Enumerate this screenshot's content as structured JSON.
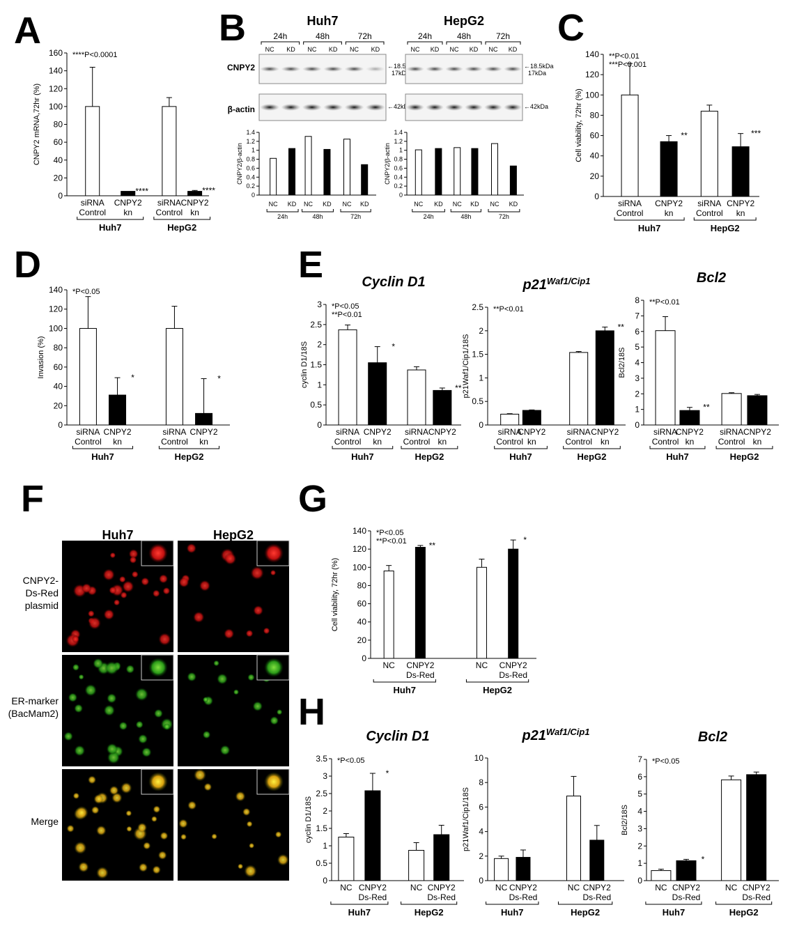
{
  "panels": {
    "A": {
      "letter": "A"
    },
    "B": {
      "letter": "B"
    },
    "C": {
      "letter": "C"
    },
    "D": {
      "letter": "D"
    },
    "E": {
      "letter": "E"
    },
    "F": {
      "letter": "F"
    },
    "G": {
      "letter": "G"
    },
    "H": {
      "letter": "H"
    }
  },
  "blot": {
    "cells": [
      "Huh7",
      "HepG2"
    ],
    "timepoints": [
      "24h",
      "48h",
      "72h"
    ],
    "lanes": [
      "NC",
      "KD",
      "NC",
      "KD",
      "NC",
      "KD"
    ],
    "rows": [
      "CNPY2",
      "β-actin"
    ],
    "markers_cnpy2": [
      "18.5kDa",
      "17kDa"
    ],
    "marker_actin": "42kDa"
  },
  "microscopy": {
    "columns": [
      "Huh7",
      "HepG2"
    ],
    "rows": [
      "CNPY2-\nDs-Red\nplasmid",
      "ER-marker\n(BacMam2)",
      "Merge"
    ],
    "row_colors": [
      "#d01010",
      "#28b020",
      "#c8b010"
    ]
  },
  "chart_data": [
    {
      "id": "A",
      "type": "bar",
      "ylabel": "CNPY2 mRNA,72hr (%)",
      "ylim": [
        0,
        160
      ],
      "yticks": [
        0,
        20,
        40,
        60,
        80,
        100,
        120,
        140,
        160
      ],
      "categories": [
        "siRNA Control",
        "CNPY2 kn",
        "siRNA Control",
        "CNPY2 kn"
      ],
      "groups": [
        "Huh7",
        "HepG2"
      ],
      "values": [
        100,
        5,
        100,
        5
      ],
      "errors": [
        44,
        0,
        10,
        1
      ],
      "fills": [
        "white",
        "black",
        "white",
        "black"
      ],
      "sig": [
        "",
        "****",
        "",
        "****"
      ],
      "stats": [
        "****P<0.0001"
      ]
    },
    {
      "id": "B-Huh7",
      "type": "bar",
      "ylabel": "CNPY2/β-actin",
      "ylim": [
        0,
        1.4
      ],
      "yticks": [
        0,
        0.2,
        0.4,
        0.6,
        0.8,
        1,
        1.2,
        1.4
      ],
      "categories": [
        "NC",
        "KD",
        "NC",
        "KD",
        "NC",
        "KD"
      ],
      "groups": [
        "24h",
        "48h",
        "72h"
      ],
      "values": [
        0.82,
        1.04,
        1.31,
        1.02,
        1.25,
        0.68
      ],
      "fills": [
        "white",
        "black",
        "white",
        "black",
        "white",
        "black"
      ]
    },
    {
      "id": "B-HepG2",
      "type": "bar",
      "ylabel": "CNPY2/β-actin",
      "ylim": [
        0,
        1.4
      ],
      "yticks": [
        0,
        0.2,
        0.4,
        0.6,
        0.8,
        1,
        1.2,
        1.4
      ],
      "categories": [
        "NC",
        "KD",
        "NC",
        "KD",
        "NC",
        "KD"
      ],
      "groups": [
        "24h",
        "48h",
        "72h"
      ],
      "values": [
        1.01,
        1.04,
        1.06,
        1.04,
        1.15,
        0.65
      ],
      "fills": [
        "white",
        "black",
        "white",
        "black",
        "white",
        "black"
      ]
    },
    {
      "id": "C",
      "type": "bar",
      "ylabel": "Cell viability, 72hr (%)",
      "ylim": [
        0,
        140
      ],
      "yticks": [
        0,
        20,
        40,
        60,
        80,
        100,
        120,
        140
      ],
      "categories": [
        "siRNA Control",
        "CNPY2 kn",
        "siRNA Control",
        "CNPY2 kn"
      ],
      "groups": [
        "Huh7",
        "HepG2"
      ],
      "values": [
        100,
        54,
        84,
        49
      ],
      "errors": [
        31,
        6,
        6,
        13
      ],
      "fills": [
        "white",
        "black",
        "white",
        "black"
      ],
      "sig": [
        "",
        "**",
        "",
        "***"
      ],
      "stats": [
        "**P<0.01",
        "***P<0.001"
      ]
    },
    {
      "id": "D",
      "type": "bar",
      "ylabel": "Invasion (%)",
      "ylim": [
        0,
        140
      ],
      "yticks": [
        0,
        20,
        40,
        60,
        80,
        100,
        120,
        140
      ],
      "categories": [
        "siRNA Control",
        "CNPY2 kn",
        "siRNA Control",
        "CNPY2 kn"
      ],
      "groups": [
        "Huh7",
        "HepG2"
      ],
      "values": [
        100,
        31,
        100,
        12
      ],
      "errors": [
        33,
        18,
        23,
        36
      ],
      "fills": [
        "white",
        "black",
        "white",
        "black"
      ],
      "sig": [
        "",
        "*",
        "",
        "*"
      ],
      "stats": [
        "*P<0.05"
      ]
    },
    {
      "id": "E1",
      "type": "bar",
      "title": "Cyclin D1",
      "ylabel": "cyclin D1/18S",
      "ylim": [
        0,
        3
      ],
      "yticks": [
        0,
        0.5,
        1,
        1.5,
        2,
        2.5,
        3
      ],
      "categories": [
        "siRNA Control",
        "CNPY2 kn",
        "siRNA Control",
        "CNPY2 kn"
      ],
      "groups": [
        "Huh7",
        "HepG2"
      ],
      "values": [
        2.37,
        1.55,
        1.37,
        0.86
      ],
      "errors": [
        0.12,
        0.4,
        0.08,
        0.06
      ],
      "fills": [
        "white",
        "black",
        "white",
        "black"
      ],
      "sig": [
        "",
        "*",
        "",
        "**"
      ],
      "stats": [
        "*P<0.05",
        "**P<0.01"
      ]
    },
    {
      "id": "E2",
      "type": "bar",
      "title": "p21",
      "title_sup": "Waf1/Cip1",
      "ylabel": "p21Waf1/Cip1/18S",
      "ylim": [
        0,
        2.5
      ],
      "yticks": [
        0,
        0.5,
        1,
        1.5,
        2,
        2.5
      ],
      "categories": [
        "siRNA Control",
        "CNPY2 kn",
        "siRNA Control",
        "CNPY2 kn"
      ],
      "groups": [
        "Huh7",
        "HepG2"
      ],
      "values": [
        0.23,
        0.31,
        1.54,
        2.0
      ],
      "errors": [
        0.01,
        0.01,
        0.02,
        0.08
      ],
      "fills": [
        "white",
        "black",
        "white",
        "black"
      ],
      "sig": [
        "",
        "",
        "",
        "**"
      ],
      "stats": [
        "**P<0.01"
      ]
    },
    {
      "id": "E3",
      "type": "bar",
      "title": "Bcl2",
      "ylabel": "Bcl2/18S",
      "ylim": [
        0,
        8
      ],
      "yticks": [
        0,
        1,
        2,
        3,
        4,
        5,
        6,
        7,
        8
      ],
      "categories": [
        "siRNA Control",
        "CNPY2 kn",
        "siRNA Control",
        "CNPY2 kn"
      ],
      "groups": [
        "Huh7",
        "HepG2"
      ],
      "values": [
        6.05,
        0.93,
        2.02,
        1.88
      ],
      "errors": [
        0.9,
        0.2,
        0.05,
        0.08
      ],
      "fills": [
        "white",
        "black",
        "white",
        "black"
      ],
      "sig": [
        "",
        "**",
        "",
        ""
      ],
      "stats": [
        "**P<0.01"
      ]
    },
    {
      "id": "G",
      "type": "bar",
      "ylabel": "Cell viability, 72hr (%)",
      "ylim": [
        0,
        140
      ],
      "yticks": [
        0,
        20,
        40,
        60,
        80,
        100,
        120,
        140
      ],
      "categories": [
        "NC",
        "CNPY2 Ds-Red",
        "NC",
        "CNPY2 Ds-Red"
      ],
      "groups": [
        "Huh7",
        "HepG2"
      ],
      "values": [
        96,
        122,
        100,
        120
      ],
      "errors": [
        6,
        2,
        9,
        10
      ],
      "fills": [
        "white",
        "black",
        "white",
        "black"
      ],
      "sig": [
        "",
        "**",
        "",
        "*"
      ],
      "stats": [
        "*P<0.05",
        "**P<0.01"
      ]
    },
    {
      "id": "H1",
      "type": "bar",
      "title": "Cyclin D1",
      "ylabel": "cyclin D1/18S",
      "ylim": [
        0,
        3.5
      ],
      "yticks": [
        0,
        0.5,
        1,
        1.5,
        2,
        2.5,
        3,
        3.5
      ],
      "categories": [
        "NC",
        "CNPY2 Ds-Red",
        "NC",
        "CNPY2 Ds-Red"
      ],
      "groups": [
        "Huh7",
        "HepG2"
      ],
      "values": [
        1.25,
        2.58,
        0.87,
        1.32
      ],
      "errors": [
        0.1,
        0.5,
        0.22,
        0.27
      ],
      "fills": [
        "white",
        "black",
        "white",
        "black"
      ],
      "sig": [
        "",
        "*",
        "",
        ""
      ],
      "stats": [
        "*P<0.05"
      ]
    },
    {
      "id": "H2",
      "type": "bar",
      "title": "p21",
      "title_sup": "Waf1/Cip1",
      "ylabel": "p21Waf1/Cip1/18S",
      "ylim": [
        0,
        10
      ],
      "yticks": [
        0,
        2,
        4,
        6,
        8,
        10
      ],
      "categories": [
        "NC",
        "CNPY2 Ds-Red",
        "NC",
        "CNPY2 Ds-Red"
      ],
      "groups": [
        "Huh7",
        "HepG2"
      ],
      "values": [
        1.8,
        1.9,
        6.9,
        3.3
      ],
      "errors": [
        0.2,
        0.6,
        1.6,
        1.2
      ],
      "fills": [
        "white",
        "black",
        "white",
        "black"
      ],
      "sig": [
        "",
        "",
        "",
        ""
      ],
      "stats": []
    },
    {
      "id": "H3",
      "type": "bar",
      "title": "Bcl2",
      "ylabel": "Bcl2/18S",
      "ylim": [
        0,
        7
      ],
      "yticks": [
        0,
        1,
        2,
        3,
        4,
        5,
        6,
        7
      ],
      "categories": [
        "NC",
        "CNPY2 Ds-Red",
        "NC",
        "CNPY2 Ds-Red"
      ],
      "groups": [
        "Huh7",
        "HepG2"
      ],
      "values": [
        0.58,
        1.15,
        5.82,
        6.12
      ],
      "errors": [
        0.08,
        0.08,
        0.22,
        0.15
      ],
      "fills": [
        "white",
        "black",
        "white",
        "black"
      ],
      "sig": [
        "",
        "*",
        "",
        ""
      ],
      "stats": [
        "*P<0.05"
      ]
    }
  ]
}
